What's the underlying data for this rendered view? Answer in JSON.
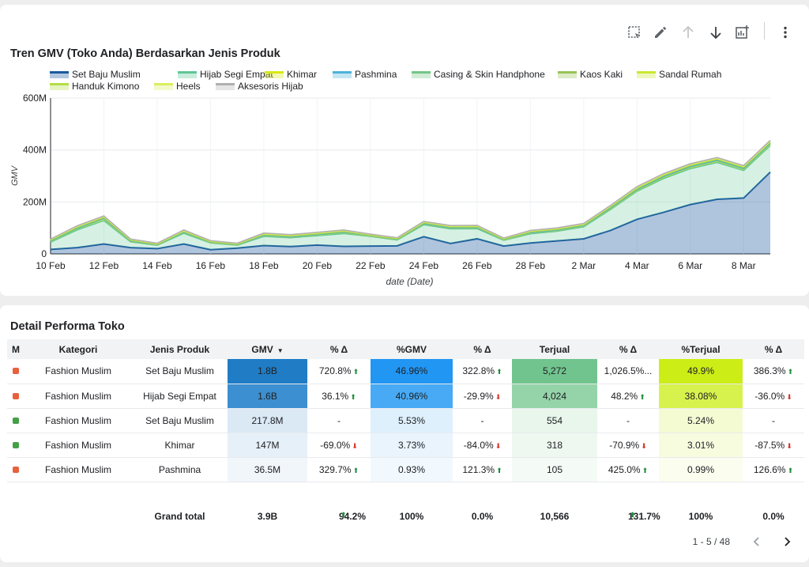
{
  "toolbar": {
    "icons": [
      "select-area-icon",
      "edit-icon",
      "arrow-up-icon",
      "arrow-down-icon",
      "chart-add-icon",
      "more-vert-icon"
    ]
  },
  "chart": {
    "title": "Tren GMV (Toko Anda) Berdasarkan Jenis Produk"
  },
  "chart_data": {
    "type": "area",
    "title": "Tren GMV (Toko Anda) Berdasarkan Jenis Produk",
    "xlabel": "date (Date)",
    "ylabel": "GMV",
    "ylim": [
      0,
      600000000
    ],
    "yticks": [
      "0",
      "200M",
      "400M",
      "600M"
    ],
    "ytick_values": [
      0,
      200000000,
      400000000,
      600000000
    ],
    "grid": true,
    "legend_position": "top",
    "x": [
      "10 Feb",
      "11 Feb",
      "12 Feb",
      "13 Feb",
      "14 Feb",
      "15 Feb",
      "16 Feb",
      "17 Feb",
      "18 Feb",
      "19 Feb",
      "20 Feb",
      "21 Feb",
      "22 Feb",
      "23 Feb",
      "24 Feb",
      "25 Feb",
      "26 Feb",
      "27 Feb",
      "28 Feb",
      "1 Mar",
      "2 Mar",
      "3 Mar",
      "4 Mar",
      "5 Mar",
      "6 Mar",
      "7 Mar",
      "8 Mar",
      "9 Mar"
    ],
    "xtick_labels": [
      "10 Feb",
      "12 Feb",
      "14 Feb",
      "16 Feb",
      "18 Feb",
      "20 Feb",
      "22 Feb",
      "24 Feb",
      "26 Feb",
      "28 Feb",
      "2 Mar",
      "4 Mar",
      "6 Mar",
      "8 Mar"
    ],
    "series": [
      {
        "name": "Set Baju Muslim",
        "color": "#1a5a9e",
        "values": [
          17,
          24,
          38,
          24,
          20,
          38,
          16,
          22,
          32,
          28,
          34,
          29,
          30,
          31,
          66,
          40,
          58,
          30,
          42,
          50,
          58,
          90,
          133,
          160,
          190,
          210,
          215,
          315
        ]
      },
      {
        "name": "Hijab Segi Empat",
        "color": "#5dc795",
        "values": [
          28,
          68,
          90,
          22,
          13,
          41,
          26,
          11,
          35,
          34,
          36,
          49,
          37,
          22,
          46,
          56,
          39,
          22,
          35,
          37,
          46,
          80,
          108,
          130,
          138,
          142,
          106,
          102
        ]
      },
      {
        "name": "Khimar",
        "color": "#d8e816",
        "values": [
          3,
          5,
          6,
          2,
          1,
          3,
          2,
          1,
          3,
          2,
          3,
          4,
          2,
          2,
          3,
          3,
          3,
          2,
          3,
          3,
          3,
          3,
          4,
          5,
          5,
          5,
          5,
          6
        ]
      },
      {
        "name": "Pashmina",
        "color": "#4db2d9",
        "values": [
          1,
          1,
          2,
          1,
          1,
          1,
          1,
          1,
          1,
          1,
          1,
          1,
          1,
          1,
          1,
          1,
          1,
          1,
          1,
          1,
          1,
          2,
          2,
          2,
          2,
          2,
          2,
          2
        ]
      },
      {
        "name": "Casing & Skin Handphone",
        "color": "#72c685",
        "values": [
          2,
          2,
          2,
          2,
          1,
          2,
          1,
          1,
          2,
          2,
          2,
          2,
          1,
          1,
          2,
          2,
          2,
          1,
          2,
          2,
          2,
          3,
          3,
          3,
          3,
          3,
          3,
          3
        ]
      },
      {
        "name": "Kaos Kaki",
        "color": "#98c356",
        "values": [
          2,
          3,
          3,
          2,
          1,
          2,
          1,
          1,
          2,
          2,
          2,
          2,
          1,
          1,
          2,
          2,
          2,
          1,
          2,
          2,
          2,
          3,
          3,
          3,
          3,
          3,
          3,
          3
        ]
      },
      {
        "name": "Sandal Rumah",
        "color": "#c8e832",
        "values": [
          1,
          1,
          1,
          1,
          1,
          1,
          1,
          1,
          1,
          1,
          1,
          1,
          1,
          1,
          1,
          1,
          1,
          1,
          1,
          1,
          1,
          1,
          1,
          1,
          1,
          1,
          1,
          1
        ]
      },
      {
        "name": "Handuk Kimono",
        "color": "#b5dd45",
        "values": [
          1,
          1,
          1,
          1,
          1,
          1,
          1,
          1,
          1,
          1,
          1,
          1,
          1,
          1,
          1,
          1,
          1,
          1,
          1,
          1,
          1,
          1,
          1,
          1,
          1,
          1,
          1,
          1
        ]
      },
      {
        "name": "Heels",
        "color": "#dbee5e",
        "values": [
          1,
          1,
          1,
          1,
          1,
          1,
          1,
          1,
          1,
          1,
          1,
          1,
          1,
          1,
          1,
          1,
          1,
          1,
          1,
          1,
          1,
          1,
          1,
          1,
          1,
          1,
          1,
          1
        ]
      },
      {
        "name": "Aksesoris Hijab",
        "color": "#b0b0b0",
        "values": [
          1,
          2,
          2,
          1,
          1,
          2,
          1,
          1,
          2,
          2,
          2,
          2,
          1,
          1,
          2,
          2,
          2,
          1,
          2,
          2,
          2,
          2,
          3,
          3,
          3,
          3,
          3,
          3
        ]
      }
    ],
    "value_unit": "M"
  },
  "table": {
    "title": "Detail Performa Toko",
    "headers": [
      "M",
      "Kategori",
      "Jenis Produk",
      "GMV",
      "% Δ",
      "%GMV",
      "% Δ",
      "Terjual",
      "% Δ",
      "%Terjual",
      "% Δ"
    ],
    "sort_icon": "sort-down-icon",
    "rows": [
      {
        "icon": "red-bag-icon",
        "icon_color": "#e8603c",
        "kategori": "Fashion Muslim",
        "jenis": "Set Baju Muslim",
        "gmv": "1.8B",
        "gmv_d": "720.8%",
        "gmv_dir": "up",
        "pgmv": "46.96%",
        "pgmv_d": "322.8%",
        "pgmv_dir": "up",
        "terjual": "5,272",
        "terjual_d": "1,026.5%...",
        "terjual_dir": "",
        "pterjual": "49.9%",
        "pterjual_d": "386.3%",
        "pterjual_dir": "up",
        "gmv_bg": "#1f7cc5",
        "pgmv_bg": "#2196f3",
        "terjual_bg": "#71c48e",
        "pterjual_bg": "#ccee16"
      },
      {
        "icon": "red-bag-icon",
        "icon_color": "#e8603c",
        "kategori": "Fashion Muslim",
        "jenis": "Hijab Segi Empat",
        "gmv": "1.6B",
        "gmv_d": "36.1%",
        "gmv_dir": "up",
        "pgmv": "40.96%",
        "pgmv_d": "-29.9%",
        "pgmv_dir": "down",
        "terjual": "4,024",
        "terjual_d": "48.2%",
        "terjual_dir": "up",
        "pterjual": "38.08%",
        "pterjual_d": "-36.0%",
        "pterjual_dir": "down",
        "gmv_bg": "#3c8fd0",
        "pgmv_bg": "#48aaf4",
        "terjual_bg": "#95d3a9",
        "pterjual_bg": "#d8f24d"
      },
      {
        "icon": "green-leaf-icon",
        "icon_color": "#43a047",
        "kategori": "Fashion Muslim",
        "jenis": "Set Baju Muslim",
        "gmv": "217.8M",
        "gmv_d": "-",
        "gmv_dir": "",
        "pgmv": "5.53%",
        "pgmv_d": "-",
        "pgmv_dir": "",
        "terjual": "554",
        "terjual_d": "-",
        "terjual_dir": "",
        "pterjual": "5.24%",
        "pterjual_d": "-",
        "pterjual_dir": "",
        "gmv_bg": "#dbe9f5",
        "pgmv_bg": "#dff0fd",
        "terjual_bg": "#e8f6ec",
        "pterjual_bg": "#f4fbd3"
      },
      {
        "icon": "green-leaf-icon",
        "icon_color": "#43a047",
        "kategori": "Fashion Muslim",
        "jenis": "Khimar",
        "gmv": "147M",
        "gmv_d": "-69.0%",
        "gmv_dir": "down",
        "pgmv": "3.73%",
        "pgmv_d": "-84.0%",
        "pgmv_dir": "down",
        "terjual": "318",
        "terjual_d": "-70.9%",
        "terjual_dir": "down",
        "pterjual": "3.01%",
        "pterjual_d": "-87.5%",
        "pterjual_dir": "down",
        "gmv_bg": "#e6f0f8",
        "pgmv_bg": "#e9f4fd",
        "terjual_bg": "#eef8f1",
        "pterjual_bg": "#f7fcdf"
      },
      {
        "icon": "red-bag-icon",
        "icon_color": "#e8603c",
        "kategori": "Fashion Muslim",
        "jenis": "Pashmina",
        "gmv": "36.5M",
        "gmv_d": "329.7%",
        "gmv_dir": "up",
        "pgmv": "0.93%",
        "pgmv_d": "121.3%",
        "pgmv_dir": "up",
        "terjual": "105",
        "terjual_d": "425.0%",
        "terjual_dir": "up",
        "pterjual": "0.99%",
        "pterjual_d": "126.6%",
        "pterjual_dir": "up",
        "gmv_bg": "#f1f6fb",
        "pgmv_bg": "#f2f9fe",
        "terjual_bg": "#f4fbf6",
        "pterjual_bg": "#fbfdee"
      }
    ],
    "grand": {
      "label": "Grand total",
      "gmv": "3.9B",
      "gmv_d": "94.2%",
      "gmv_dir": "up",
      "pgmv": "100%",
      "pgmv_d": "0.0%",
      "terjual": "10,566",
      "terjual_d": "131.7%",
      "terjual_dir": "up",
      "pterjual": "100%",
      "pterjual_d": "0.0%"
    }
  },
  "pager": {
    "label": "1 - 5 / 48"
  }
}
